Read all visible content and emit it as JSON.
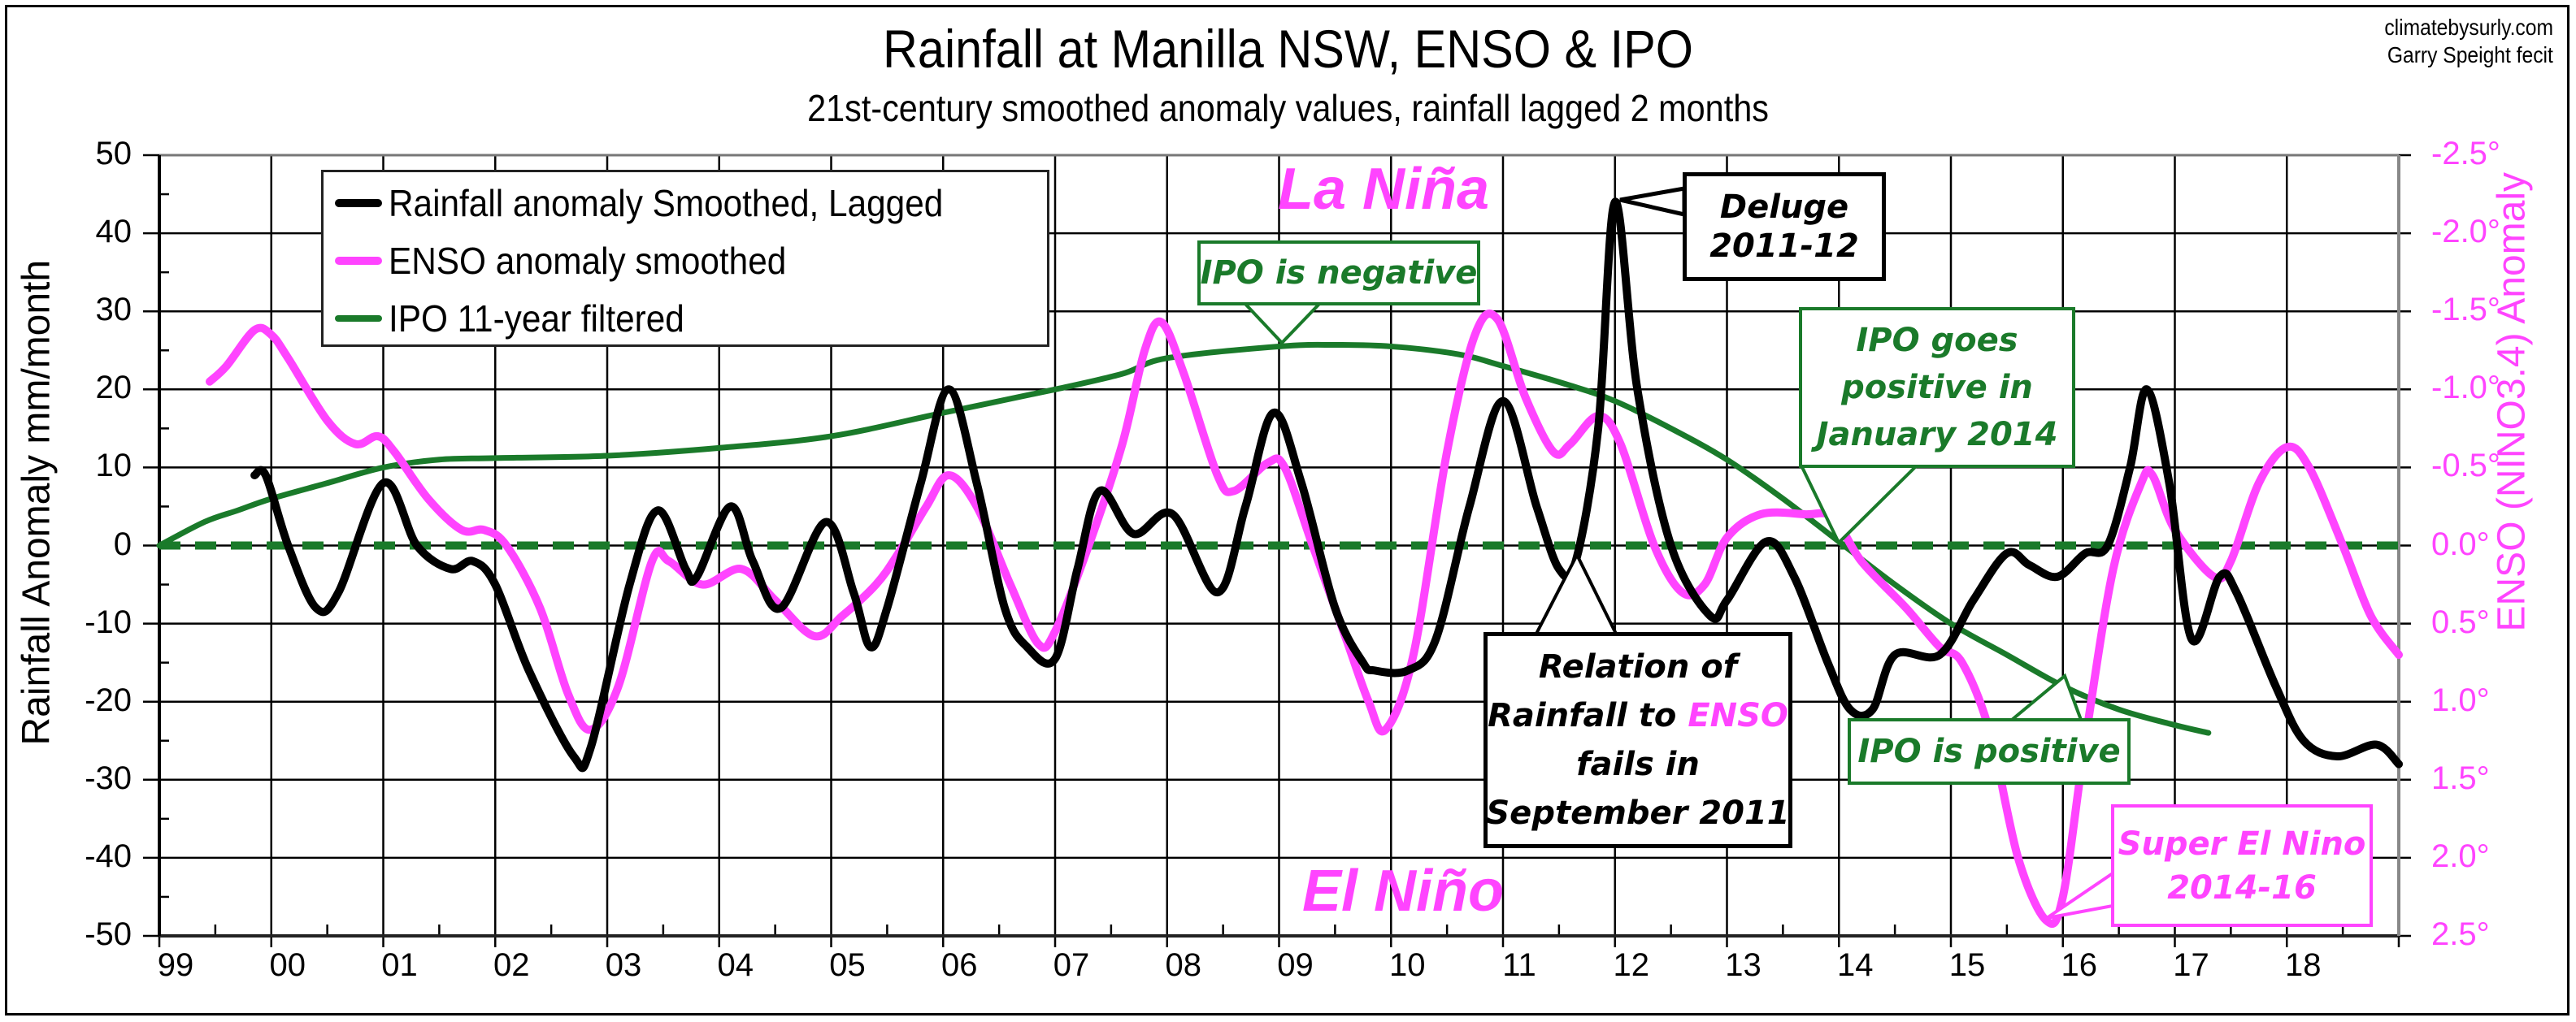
{
  "credits": {
    "line1": "climatebysurly.com",
    "line2": "Garry Speight fecit"
  },
  "colors": {
    "rainfall": "#000000",
    "enso": "#ff44ff",
    "ipo": "#1a7a2a",
    "grid": "#000000"
  },
  "legend": {
    "items": [
      {
        "label": "Rainfall anomaly Smoothed, Lagged",
        "color": "#000000"
      },
      {
        "label": "ENSO anomaly smoothed",
        "color": "#ff44ff"
      },
      {
        "label": "IPO 11-year filtered",
        "color": "#1a7a2a"
      }
    ]
  },
  "annotations": {
    "la_nina": "La Niña",
    "el_nino": "El Niño",
    "ipo_negative": "IPO is negative",
    "deluge": [
      "Deluge",
      "2011-12"
    ],
    "ipo_goes_positive": [
      "IPO goes",
      "positive in",
      "January 2014"
    ],
    "relation": {
      "line1": "Relation of",
      "line2a": "Rainfall to ",
      "line2b": "ENSO",
      "line3": "fails in",
      "line4": "September 2011"
    },
    "ipo_positive": "IPO is positive",
    "super_el_nino": [
      "Super El Nino",
      "2014-16"
    ]
  },
  "chart_data": {
    "type": "line",
    "title": "Rainfall at Manilla NSW, ENSO & IPO",
    "subtitle": "21st-century smoothed anomaly values, rainfall lagged 2 months",
    "xlabel": "",
    "ylabel": "Rainfall Anomaly mm/month",
    "y2label": "ENSO (NINO3.4) Anomaly",
    "xlim": [
      1999,
      2019
    ],
    "ylim": [
      -50,
      50
    ],
    "y2lim": [
      2.5,
      -2.5
    ],
    "grid": true,
    "legend_position": "top-left",
    "x_tick_labels": [
      "99",
      "00",
      "01",
      "02",
      "03",
      "04",
      "05",
      "06",
      "07",
      "08",
      "09",
      "10",
      "11",
      "12",
      "13",
      "14",
      "15",
      "16",
      "17",
      "18"
    ],
    "y_tick_labels": [
      "50",
      "40",
      "30",
      "20",
      "10",
      "0",
      "-10",
      "-20",
      "-30",
      "-40",
      "-50"
    ],
    "y2_tick_labels": [
      "-2.5°",
      "-2.0°",
      "-1.5°",
      "-1.0°",
      "-0.5°",
      "0.0°",
      "0.5°",
      "1.0°",
      "1.5°",
      "2.0°",
      "2.5°"
    ],
    "series": [
      {
        "name": "Rainfall anomaly Smoothed, Lagged",
        "axis": "left",
        "x": [
          1999.85,
          1999.95,
          2000.15,
          2000.4,
          2000.6,
          2001.0,
          2001.3,
          2001.6,
          2001.8,
          2002.0,
          2002.3,
          2002.7,
          2002.85,
          2003.2,
          2003.45,
          2003.7,
          2003.8,
          2004.1,
          2004.3,
          2004.55,
          2004.95,
          2005.2,
          2005.35,
          2005.5,
          2005.8,
          2006.05,
          2006.3,
          2006.55,
          2006.75,
          2007.0,
          2007.2,
          2007.4,
          2007.7,
          2008.05,
          2008.45,
          2008.7,
          2008.95,
          2009.2,
          2009.5,
          2009.75,
          2009.85,
          2010.15,
          2010.4,
          2010.7,
          2011.0,
          2011.3,
          2011.5,
          2011.65,
          2011.85,
          2012.0,
          2012.2,
          2012.5,
          2012.85,
          2013.0,
          2013.35,
          2013.6,
          2013.9,
          2014.1,
          2014.3,
          2014.5,
          2014.9,
          2015.2,
          2015.5,
          2015.7,
          2015.95,
          2016.2,
          2016.4,
          2016.6,
          2016.75,
          2016.95,
          2017.15,
          2017.4,
          2017.55,
          2017.9,
          2018.15,
          2018.45,
          2018.8,
          2019.0
        ],
        "y": [
          9,
          9,
          0,
          -8,
          -6,
          8,
          0,
          -3,
          -2,
          -5,
          -16,
          -27,
          -26,
          -5,
          4.5,
          -3,
          -4,
          5,
          -2,
          -8,
          3,
          -6,
          -13,
          -8,
          8,
          20,
          8,
          -8,
          -13,
          -14.5,
          -3,
          7,
          1.5,
          4,
          -6,
          5,
          17,
          8,
          -8,
          -15,
          -16,
          -16,
          -12,
          5,
          18.5,
          5,
          -3,
          -2,
          15,
          44,
          20,
          0,
          -9,
          -7,
          0.5,
          -4,
          -15,
          -21,
          -21,
          -14,
          -14,
          -7,
          -1,
          -2.5,
          -4,
          -1,
          0,
          10,
          20,
          8,
          -12,
          -4,
          -6,
          -18,
          -25,
          -27,
          -25.5,
          -28
        ]
      },
      {
        "name": "ENSO anomaly smoothed",
        "axis": "right",
        "x": [
          1999.45,
          1999.6,
          1999.85,
          2000.0,
          2000.15,
          2000.5,
          2000.75,
          2000.95,
          2001.1,
          2001.4,
          2001.7,
          2001.9,
          2002.1,
          2002.4,
          2002.65,
          2002.85,
          2003.1,
          2003.4,
          2003.55,
          2003.85,
          2004.2,
          2004.5,
          2004.85,
          2005.1,
          2005.4,
          2005.6,
          2005.85,
          2006.05,
          2006.3,
          2006.6,
          2006.85,
          2007.0,
          2007.3,
          2007.6,
          2007.8,
          2007.95,
          2008.15,
          2008.45,
          2008.6,
          2008.9,
          2009.05,
          2009.3,
          2009.6,
          2009.8,
          2009.95,
          2010.2,
          2010.5,
          2010.75,
          2010.95,
          2011.2,
          2011.45,
          2011.6,
          2011.85,
          2012.05,
          2012.35,
          2012.6,
          2012.8,
          2013.0,
          2013.3,
          2013.7,
          2013.95,
          2014.2,
          2014.6,
          2014.9,
          2015.1,
          2015.35,
          2015.6,
          2015.85,
          2016.0,
          2016.2,
          2016.45,
          2016.7,
          2016.8,
          2017.0,
          2017.35,
          2017.5,
          2017.75,
          2018.0,
          2018.2,
          2018.5,
          2018.75,
          2019.0
        ],
        "y": [
          -1.05,
          -1.15,
          -1.38,
          -1.35,
          -1.2,
          -0.8,
          -0.65,
          -0.7,
          -0.6,
          -0.3,
          -0.1,
          -0.1,
          0.0,
          0.4,
          0.95,
          1.18,
          0.9,
          0.1,
          0.1,
          0.25,
          0.15,
          0.35,
          0.58,
          0.45,
          0.25,
          0.05,
          -0.25,
          -0.45,
          -0.25,
          0.25,
          0.63,
          0.55,
          0.0,
          -0.65,
          -1.25,
          -1.43,
          -1.1,
          -0.45,
          -0.35,
          -0.53,
          -0.5,
          0.0,
          0.6,
          1.0,
          1.18,
          0.7,
          -0.6,
          -1.35,
          -1.45,
          -0.95,
          -0.6,
          -0.65,
          -0.83,
          -0.65,
          0.0,
          0.3,
          0.25,
          -0.05,
          -0.2,
          -0.2,
          -0.18,
          0.1,
          0.4,
          0.65,
          0.75,
          1.2,
          2.0,
          2.4,
          2.25,
          1.25,
          0.15,
          -0.4,
          -0.45,
          -0.1,
          0.2,
          0.1,
          -0.4,
          -0.63,
          -0.5,
          0.0,
          0.45,
          0.7
        ]
      },
      {
        "name": "IPO 11-year filtered",
        "axis": "left",
        "x": [
          1999.0,
          1999.4,
          1999.7,
          2000.0,
          2000.5,
          2001.0,
          2001.5,
          2002.0,
          2003.0,
          2004.0,
          2005.0,
          2006.0,
          2007.0,
          2007.6,
          2008.0,
          2009.0,
          2009.5,
          2010.0,
          2010.6,
          2011.0,
          2011.6,
          2012.0,
          2012.5,
          2013.0,
          2013.5,
          2014.0,
          2014.5,
          2015.0,
          2015.5,
          2016.0,
          2016.5,
          2017.0,
          2017.3
        ],
        "y": [
          0,
          3,
          4.5,
          6,
          8,
          10,
          11,
          11.2,
          11.5,
          12.5,
          14,
          17,
          20,
          22,
          24,
          25.5,
          25.7,
          25.5,
          24.5,
          23,
          20.5,
          18.5,
          15,
          11,
          6,
          0.5,
          -5,
          -10,
          -14,
          -18,
          -21,
          -23,
          -24
        ]
      },
      {
        "name": "Zero line",
        "axis": "left",
        "style": "dashed",
        "x": [
          1999.0,
          2019.0
        ],
        "y": [
          0,
          0
        ]
      }
    ]
  }
}
